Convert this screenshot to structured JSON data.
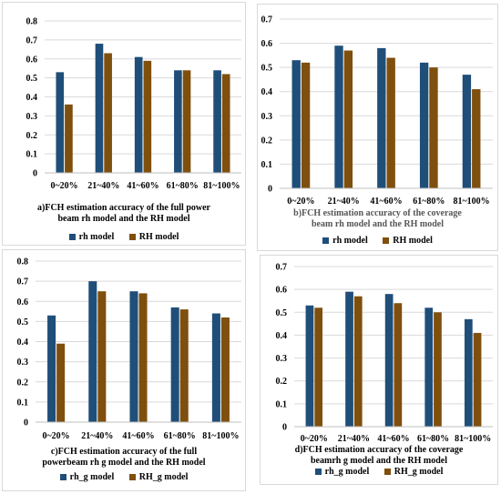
{
  "colors": {
    "series1": "#1f4e79",
    "series2": "#7f4f0e",
    "grid": "#d9d9d9"
  },
  "panels": [
    {
      "caption_line1": "a)FCH estimation accuracy of the full power",
      "caption_line2": "beam rh model and the RH model",
      "legend": [
        "rh model",
        "RH model"
      ]
    },
    {
      "caption_line1": "b)FCH estimation accuracy of the coverage",
      "caption_line2": "beam rh model and the RH model",
      "legend": [
        "rh model",
        "RH model"
      ]
    },
    {
      "caption_line1": "c)FCH estimation accuracy of the full",
      "caption_line2": "powerbeam rh g model and the RH model",
      "legend": [
        "rh_g model",
        "RH_g model"
      ]
    },
    {
      "caption_line1": "d)FCH estimation accuracy of the coverage",
      "caption_line2": "beamrh g model and the RH model",
      "legend": [
        "rh_g model",
        "RH_g model"
      ]
    }
  ],
  "chart_data": [
    {
      "type": "bar",
      "title": "",
      "categories": [
        "0~20%",
        "21~40%",
        "41~60%",
        "61~80%",
        "81~100%"
      ],
      "series": [
        {
          "name": "rh model",
          "values": [
            0.53,
            0.68,
            0.61,
            0.54,
            0.54
          ]
        },
        {
          "name": "RH model",
          "values": [
            0.36,
            0.63,
            0.59,
            0.54,
            0.52
          ]
        }
      ],
      "ylim": [
        0,
        0.8
      ],
      "yticks": [
        "0",
        "0.1",
        "0.2",
        "0.3",
        "0.4",
        "0.5",
        "0.6",
        "0.7",
        "0.8"
      ],
      "grid": true,
      "legend": "bottom"
    },
    {
      "type": "bar",
      "title": "",
      "categories": [
        "0~20%",
        "21~40%",
        "41~60%",
        "61~80%",
        "81~100%"
      ],
      "series": [
        {
          "name": "rh model",
          "values": [
            0.53,
            0.59,
            0.58,
            0.52,
            0.47
          ]
        },
        {
          "name": "RH model",
          "values": [
            0.52,
            0.57,
            0.54,
            0.5,
            0.41
          ]
        }
      ],
      "ylim": [
        0,
        0.7
      ],
      "yticks": [
        "0",
        "0.1",
        "0.2",
        "0.3",
        "0.4",
        "0.5",
        "0.6",
        "0.7"
      ],
      "grid": true,
      "legend": "bottom"
    },
    {
      "type": "bar",
      "title": "",
      "categories": [
        "0~20%",
        "21~40%",
        "41~60%",
        "61~80%",
        "81~100%"
      ],
      "series": [
        {
          "name": "rh_g model",
          "values": [
            0.53,
            0.7,
            0.65,
            0.57,
            0.54
          ]
        },
        {
          "name": "RH_g model",
          "values": [
            0.39,
            0.65,
            0.64,
            0.56,
            0.52
          ]
        }
      ],
      "ylim": [
        0,
        0.8
      ],
      "yticks": [
        "0",
        "0.1",
        "0.2",
        "0.3",
        "0.4",
        "0.5",
        "0.6",
        "0.7",
        "0.8"
      ],
      "grid": true,
      "legend": "bottom"
    },
    {
      "type": "bar",
      "title": "",
      "categories": [
        "0~20%",
        "21~40%",
        "41~60%",
        "61~80%",
        "81~100%"
      ],
      "series": [
        {
          "name": "rh_g model",
          "values": [
            0.53,
            0.59,
            0.58,
            0.52,
            0.47
          ]
        },
        {
          "name": "RH_g model",
          "values": [
            0.52,
            0.57,
            0.54,
            0.5,
            0.41
          ]
        }
      ],
      "ylim": [
        0,
        0.7
      ],
      "yticks": [
        "0",
        "0.1",
        "0.2",
        "0.3",
        "0.4",
        "0.5",
        "0.6",
        "0.7"
      ],
      "grid": true,
      "legend": "bottom"
    }
  ]
}
